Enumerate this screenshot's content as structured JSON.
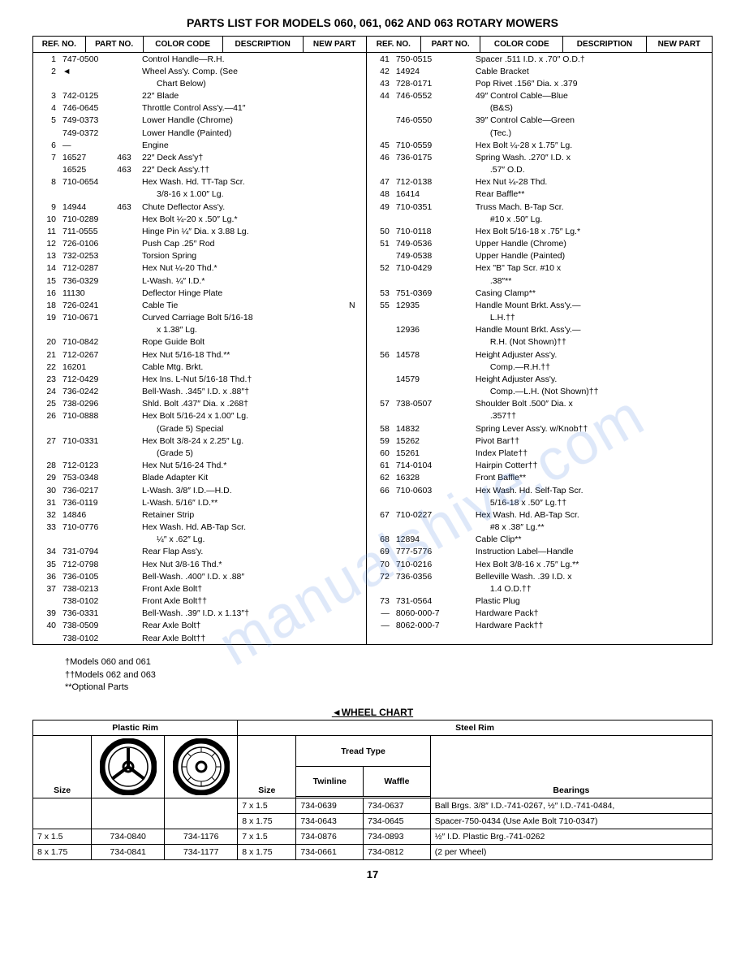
{
  "title": "PARTS LIST FOR MODELS 060, 061, 062 AND 063 ROTARY MOWERS",
  "watermark": "manualshive.com",
  "headers": [
    "REF. NO.",
    "PART NO.",
    "COLOR CODE",
    "DESCRIPTION",
    "NEW PART"
  ],
  "left_rows": [
    {
      "ref": "1",
      "part": "747-0500",
      "color": "",
      "desc": "Control Handle—R.H.",
      "new": ""
    },
    {
      "ref": "2",
      "part": "◄",
      "color": "",
      "desc": "Wheel Ass'y. Comp. (See",
      "new": ""
    },
    {
      "ref": "",
      "part": "",
      "color": "",
      "desc": "    Chart Below)",
      "new": ""
    },
    {
      "ref": "3",
      "part": "742-0125",
      "color": "",
      "desc": "22″ Blade",
      "new": ""
    },
    {
      "ref": "4",
      "part": "746-0645",
      "color": "",
      "desc": "Throttle Control Ass'y.—41″",
      "new": ""
    },
    {
      "ref": "5",
      "part": "749-0373",
      "color": "",
      "desc": "Lower Handle (Chrome)",
      "new": ""
    },
    {
      "ref": "",
      "part": "749-0372",
      "color": "",
      "desc": "Lower Handle (Painted)",
      "new": ""
    },
    {
      "ref": "6",
      "part": "—",
      "color": "",
      "desc": "Engine",
      "new": ""
    },
    {
      "ref": "7",
      "part": "16527",
      "color": "463",
      "desc": "22″ Deck Ass'y†",
      "new": ""
    },
    {
      "ref": "",
      "part": "16525",
      "color": "463",
      "desc": "22″ Deck Ass'y.††",
      "new": ""
    },
    {
      "ref": "8",
      "part": "710-0654",
      "color": "",
      "desc": "Hex Wash. Hd. TT-Tap Scr.",
      "new": ""
    },
    {
      "ref": "",
      "part": "",
      "color": "",
      "desc": "    3/8-16 x 1.00″ Lg.",
      "new": ""
    },
    {
      "ref": "9",
      "part": "14944",
      "color": "463",
      "desc": "Chute Deflector Ass'y.",
      "new": ""
    },
    {
      "ref": "10",
      "part": "710-0289",
      "color": "",
      "desc": "Hex Bolt ¼-20 x .50″ Lg.*",
      "new": ""
    },
    {
      "ref": "11",
      "part": "711-0555",
      "color": "",
      "desc": "Hinge Pin ¼″ Dia. x 3.88 Lg.",
      "new": ""
    },
    {
      "ref": "12",
      "part": "726-0106",
      "color": "",
      "desc": "Push Cap .25″ Rod",
      "new": ""
    },
    {
      "ref": "13",
      "part": "732-0253",
      "color": "",
      "desc": "Torsion Spring",
      "new": ""
    },
    {
      "ref": "14",
      "part": "712-0287",
      "color": "",
      "desc": "Hex Nut ¼-20 Thd.*",
      "new": ""
    },
    {
      "ref": "15",
      "part": "736-0329",
      "color": "",
      "desc": "L-Wash. ¼″ I.D.*",
      "new": ""
    },
    {
      "ref": "16",
      "part": "11130",
      "color": "",
      "desc": "Deflector Hinge Plate",
      "new": ""
    },
    {
      "ref": "18",
      "part": "726-0241",
      "color": "",
      "desc": "Cable Tie",
      "new": "N"
    },
    {
      "ref": "19",
      "part": "710-0671",
      "color": "",
      "desc": "Curved Carriage Bolt 5/16-18",
      "new": ""
    },
    {
      "ref": "",
      "part": "",
      "color": "",
      "desc": "    x 1.38″ Lg.",
      "new": ""
    },
    {
      "ref": "20",
      "part": "710-0842",
      "color": "",
      "desc": "Rope Guide Bolt",
      "new": ""
    },
    {
      "ref": "21",
      "part": "712-0267",
      "color": "",
      "desc": "Hex Nut 5/16-18 Thd.**",
      "new": ""
    },
    {
      "ref": "22",
      "part": "16201",
      "color": "",
      "desc": "Cable Mtg. Brkt.",
      "new": ""
    },
    {
      "ref": "23",
      "part": "712-0429",
      "color": "",
      "desc": "Hex Ins. L-Nut 5/16-18 Thd.†",
      "new": ""
    },
    {
      "ref": "24",
      "part": "736-0242",
      "color": "",
      "desc": "Bell-Wash. .345″ I.D. x .88″†",
      "new": ""
    },
    {
      "ref": "25",
      "part": "738-0296",
      "color": "",
      "desc": "Shld. Bolt .437″ Dia. x .268†",
      "new": ""
    },
    {
      "ref": "26",
      "part": "710-0888",
      "color": "",
      "desc": "Hex Bolt 5/16-24 x 1.00″ Lg.",
      "new": ""
    },
    {
      "ref": "",
      "part": "",
      "color": "",
      "desc": "    (Grade 5) Special",
      "new": ""
    },
    {
      "ref": "27",
      "part": "710-0331",
      "color": "",
      "desc": "Hex Bolt 3/8-24 x 2.25″ Lg.",
      "new": ""
    },
    {
      "ref": "",
      "part": "",
      "color": "",
      "desc": "    (Grade 5)",
      "new": ""
    },
    {
      "ref": "28",
      "part": "712-0123",
      "color": "",
      "desc": "Hex Nut 5/16-24 Thd.*",
      "new": ""
    },
    {
      "ref": "29",
      "part": "753-0348",
      "color": "",
      "desc": "Blade Adapter Kit",
      "new": ""
    },
    {
      "ref": "30",
      "part": "736-0217",
      "color": "",
      "desc": "L-Wash. 3/8″ I.D.—H.D.",
      "new": ""
    },
    {
      "ref": "31",
      "part": "736-0119",
      "color": "",
      "desc": "L-Wash. 5/16″ I.D.**",
      "new": ""
    },
    {
      "ref": "32",
      "part": "14846",
      "color": "",
      "desc": "Retainer Strip",
      "new": ""
    },
    {
      "ref": "33",
      "part": "710-0776",
      "color": "",
      "desc": "Hex Wash. Hd. AB-Tap Scr.",
      "new": ""
    },
    {
      "ref": "",
      "part": "",
      "color": "",
      "desc": "    ¼″ x .62″ Lg.",
      "new": ""
    },
    {
      "ref": "34",
      "part": "731-0794",
      "color": "",
      "desc": "Rear Flap Ass'y.",
      "new": ""
    },
    {
      "ref": "35",
      "part": "712-0798",
      "color": "",
      "desc": "Hex Nut 3/8-16 Thd.*",
      "new": ""
    },
    {
      "ref": "36",
      "part": "736-0105",
      "color": "",
      "desc": "Bell-Wash. .400″ I.D. x .88″",
      "new": ""
    },
    {
      "ref": "37",
      "part": "738-0213",
      "color": "",
      "desc": "Front Axle Bolt†",
      "new": ""
    },
    {
      "ref": "",
      "part": "738-0102",
      "color": "",
      "desc": "Front Axle Bolt††",
      "new": ""
    },
    {
      "ref": "39",
      "part": "736-0331",
      "color": "",
      "desc": "Bell-Wash. .39″ I.D. x 1.13″†",
      "new": ""
    },
    {
      "ref": "40",
      "part": "738-0509",
      "color": "",
      "desc": "Rear Axle Bolt†",
      "new": ""
    },
    {
      "ref": "",
      "part": "738-0102",
      "color": "",
      "desc": "Rear Axle Bolt††",
      "new": ""
    }
  ],
  "right_rows": [
    {
      "ref": "41",
      "part": "750-0515",
      "color": "",
      "desc": "Spacer .511 I.D. x .70″ O.D.†",
      "new": ""
    },
    {
      "ref": "42",
      "part": "14924",
      "color": "",
      "desc": "Cable Bracket",
      "new": ""
    },
    {
      "ref": "43",
      "part": "728-0171",
      "color": "",
      "desc": "Pop Rivet .156″ Dia. x .379",
      "new": ""
    },
    {
      "ref": "44",
      "part": "746-0552",
      "color": "",
      "desc": "49″ Control Cable—Blue",
      "new": ""
    },
    {
      "ref": "",
      "part": "",
      "color": "",
      "desc": "    (B&S)",
      "new": ""
    },
    {
      "ref": "",
      "part": "746-0550",
      "color": "",
      "desc": "39″ Control Cable—Green",
      "new": ""
    },
    {
      "ref": "",
      "part": "",
      "color": "",
      "desc": "    (Tec.)",
      "new": ""
    },
    {
      "ref": "45",
      "part": "710-0559",
      "color": "",
      "desc": "Hex Bolt ¼-28 x 1.75″ Lg.",
      "new": ""
    },
    {
      "ref": "46",
      "part": "736-0175",
      "color": "",
      "desc": "Spring Wash. .270″ I.D. x",
      "new": ""
    },
    {
      "ref": "",
      "part": "",
      "color": "",
      "desc": "    .57″ O.D.",
      "new": ""
    },
    {
      "ref": "47",
      "part": "712-0138",
      "color": "",
      "desc": "Hex Nut ¼-28 Thd.",
      "new": ""
    },
    {
      "ref": "48",
      "part": "16414",
      "color": "",
      "desc": "Rear Baffle**",
      "new": ""
    },
    {
      "ref": "49",
      "part": "710-0351",
      "color": "",
      "desc": "Truss Mach. B-Tap Scr.",
      "new": ""
    },
    {
      "ref": "",
      "part": "",
      "color": "",
      "desc": "    #10 x .50″ Lg.",
      "new": ""
    },
    {
      "ref": "50",
      "part": "710-0118",
      "color": "",
      "desc": "Hex Bolt 5/16-18 x .75″ Lg.*",
      "new": ""
    },
    {
      "ref": "51",
      "part": "749-0536",
      "color": "",
      "desc": "Upper Handle (Chrome)",
      "new": ""
    },
    {
      "ref": "",
      "part": "749-0538",
      "color": "",
      "desc": "Upper Handle (Painted)",
      "new": ""
    },
    {
      "ref": "52",
      "part": "710-0429",
      "color": "",
      "desc": "Hex \"B\" Tap Scr. #10 x",
      "new": ""
    },
    {
      "ref": "",
      "part": "",
      "color": "",
      "desc": "    .38″**",
      "new": ""
    },
    {
      "ref": "53",
      "part": "751-0369",
      "color": "",
      "desc": "Casing Clamp**",
      "new": ""
    },
    {
      "ref": "55",
      "part": "12935",
      "color": "",
      "desc": "Handle Mount Brkt. Ass'y.—",
      "new": ""
    },
    {
      "ref": "",
      "part": "",
      "color": "",
      "desc": "    L.H.††",
      "new": ""
    },
    {
      "ref": "",
      "part": "12936",
      "color": "",
      "desc": "Handle Mount Brkt. Ass'y.—",
      "new": ""
    },
    {
      "ref": "",
      "part": "",
      "color": "",
      "desc": "    R.H. (Not Shown)††",
      "new": ""
    },
    {
      "ref": "56",
      "part": "14578",
      "color": "",
      "desc": "Height Adjuster Ass'y.",
      "new": ""
    },
    {
      "ref": "",
      "part": "",
      "color": "",
      "desc": "    Comp.—R.H.††",
      "new": ""
    },
    {
      "ref": "",
      "part": "14579",
      "color": "",
      "desc": "Height Adjuster Ass'y.",
      "new": ""
    },
    {
      "ref": "",
      "part": "",
      "color": "",
      "desc": "    Comp.—L.H. (Not Shown)††",
      "new": ""
    },
    {
      "ref": "57",
      "part": "738-0507",
      "color": "",
      "desc": "Shoulder Bolt .500″ Dia. x",
      "new": ""
    },
    {
      "ref": "",
      "part": "",
      "color": "",
      "desc": "    .357††",
      "new": ""
    },
    {
      "ref": "58",
      "part": "14832",
      "color": "",
      "desc": "Spring Lever Ass'y. w/Knob††",
      "new": ""
    },
    {
      "ref": "59",
      "part": "15262",
      "color": "",
      "desc": "Pivot Bar††",
      "new": ""
    },
    {
      "ref": "60",
      "part": "15261",
      "color": "",
      "desc": "Index Plate††",
      "new": ""
    },
    {
      "ref": "61",
      "part": "714-0104",
      "color": "",
      "desc": "Hairpin Cotter††",
      "new": ""
    },
    {
      "ref": "62",
      "part": "16328",
      "color": "",
      "desc": "Front Baffle**",
      "new": ""
    },
    {
      "ref": "66",
      "part": "710-0603",
      "color": "",
      "desc": "Hex Wash. Hd. Self-Tap Scr.",
      "new": ""
    },
    {
      "ref": "",
      "part": "",
      "color": "",
      "desc": "    5/16-18 x .50″ Lg.††",
      "new": ""
    },
    {
      "ref": "67",
      "part": "710-0227",
      "color": "",
      "desc": "Hex Wash. Hd. AB-Tap Scr.",
      "new": ""
    },
    {
      "ref": "",
      "part": "",
      "color": "",
      "desc": "    #8 x .38″ Lg.**",
      "new": ""
    },
    {
      "ref": "68",
      "part": "12894",
      "color": "",
      "desc": "Cable Clip**",
      "new": ""
    },
    {
      "ref": "69",
      "part": "777-5776",
      "color": "",
      "desc": "Instruction Label—Handle",
      "new": ""
    },
    {
      "ref": "70",
      "part": "710-0216",
      "color": "",
      "desc": "Hex Bolt 3/8-16 x .75″ Lg.**",
      "new": ""
    },
    {
      "ref": "72",
      "part": "736-0356",
      "color": "",
      "desc": "Belleville Wash. .39 I.D. x",
      "new": ""
    },
    {
      "ref": "",
      "part": "",
      "color": "",
      "desc": "    1.4 O.D.††",
      "new": ""
    },
    {
      "ref": "73",
      "part": "731-0564",
      "color": "",
      "desc": "Plastic Plug",
      "new": ""
    },
    {
      "ref": "—",
      "part": "8060-000-7",
      "color": "",
      "desc": "Hardware Pack†",
      "new": ""
    },
    {
      "ref": "—",
      "part": "8062-000-7",
      "color": "",
      "desc": "Hardware Pack††",
      "new": ""
    }
  ],
  "notes": [
    "†Models 060 and 061",
    "††Models 062 and 063",
    "**Optional Parts"
  ],
  "wheel_chart": {
    "title": "◄WHEEL CHART",
    "plastic_header": "Plastic Rim",
    "steel_header": "Steel Rim",
    "tread_header": "Tread Type",
    "bearings_header": "Bearings",
    "size_header": "Size",
    "twinline_header": "Twinline",
    "waffle_header": "Waffle",
    "plastic_sizes": [
      "7 x 1.5",
      "8 x 1.75"
    ],
    "plastic_parts_a": [
      "734-0840",
      "734-0841"
    ],
    "plastic_parts_b": [
      "734-1176",
      "734-1177"
    ],
    "steel_sizes": [
      "7 x 1.5",
      "8 x 1.75",
      "7 x 1.5",
      "8 x 1.75"
    ],
    "twinline": [
      "734-0639",
      "734-0643",
      "734-0876",
      "734-0661"
    ],
    "waffle": [
      "734-0637",
      "734-0645",
      "734-0893",
      "734-0812"
    ],
    "bearings": [
      "Ball Brgs. 3/8″ I.D.-741-0267, ½″ I.D.-741-0484,",
      "Spacer-750-0434 (Use Axle Bolt 710-0347)",
      "½″ I.D. Plastic Brg.-741-0262",
      "(2 per Wheel)"
    ]
  },
  "page_number": "17"
}
